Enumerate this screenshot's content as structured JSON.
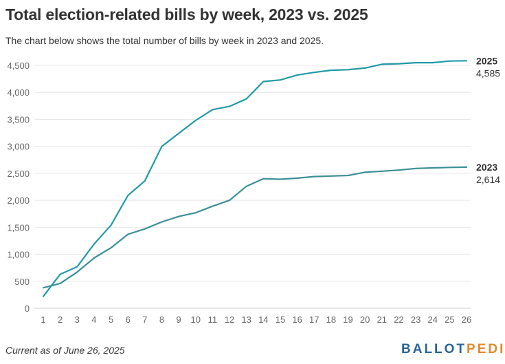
{
  "header": {
    "title": "Total election-related bills by week, 2023 vs. 2025",
    "subtitle": "The chart below shows the total number of bills by week in 2023 and 2025."
  },
  "footer": {
    "note": "Current as of June 26, 2025",
    "logo_part1": "BALLOT",
    "logo_part2": "PEDIA"
  },
  "colors": {
    "series_2025": "#1f9aa8",
    "series_2023": "#3a8f97",
    "grid": "#e6e6e6",
    "axis_text": "#666666",
    "logo_ballot": "#2a6496",
    "logo_pedia": "#e08a2e"
  },
  "chart_data": {
    "type": "line",
    "title": "Total election-related bills by week, 2023 vs. 2025",
    "subtitle": "The chart below shows the total number of bills by week in 2023 and 2025.",
    "xlabel": "",
    "ylabel": "",
    "x": [
      1,
      2,
      3,
      4,
      5,
      6,
      7,
      8,
      9,
      10,
      11,
      12,
      13,
      14,
      15,
      16,
      17,
      18,
      19,
      20,
      21,
      22,
      23,
      24,
      25,
      26
    ],
    "x_tick_labels": [
      "1",
      "2",
      "3",
      "4",
      "5",
      "6",
      "7",
      "8",
      "9",
      "10",
      "11",
      "12",
      "13",
      "14",
      "15",
      "16",
      "17",
      "18",
      "19",
      "20",
      "21",
      "22",
      "23",
      "24",
      "25",
      "26"
    ],
    "ylim": [
      0,
      4500
    ],
    "y_ticks": [
      0,
      500,
      1000,
      1500,
      2000,
      2500,
      3000,
      3500,
      4000,
      4500
    ],
    "y_tick_labels": [
      "0",
      "500",
      "1,000",
      "1,500",
      "2,000",
      "2,500",
      "3,000",
      "3,500",
      "4,000",
      "4,500"
    ],
    "grid": true,
    "legend": "end-of-line labels",
    "series": [
      {
        "name": "2025",
        "end_label": "4,585",
        "color": "#1f9aa8",
        "values": [
          220,
          630,
          770,
          1190,
          1540,
          2090,
          2360,
          3000,
          3240,
          3480,
          3680,
          3740,
          3880,
          4200,
          4230,
          4320,
          4370,
          4410,
          4420,
          4450,
          4520,
          4530,
          4550,
          4550,
          4580,
          4585
        ]
      },
      {
        "name": "2023",
        "end_label": "2,614",
        "color": "#3a8f97",
        "values": [
          380,
          460,
          670,
          930,
          1120,
          1370,
          1470,
          1600,
          1700,
          1770,
          1890,
          2000,
          2260,
          2400,
          2390,
          2410,
          2440,
          2450,
          2460,
          2520,
          2540,
          2560,
          2590,
          2600,
          2610,
          2614
        ]
      }
    ]
  }
}
